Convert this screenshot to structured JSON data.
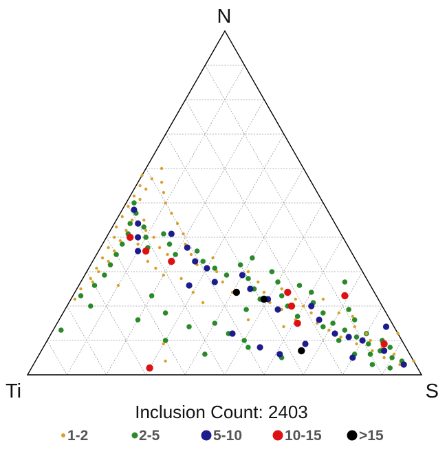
{
  "chart_data": {
    "type": "scatter",
    "subtype": "ternary",
    "vertices": {
      "top": "N",
      "left": "Ti",
      "right": "S"
    },
    "annotation": "Inclusion Count: 2403",
    "grid": true,
    "grid_divisions": 10,
    "legend_position": "bottom",
    "series": [
      {
        "name": "1-2",
        "color": "#d9a02a",
        "points": [
          {
            "N": 0.58,
            "S": 0.0,
            "Ti": 0.42
          },
          {
            "N": 0.55,
            "S": 0.01,
            "Ti": 0.44
          },
          {
            "N": 0.52,
            "S": 0.01,
            "Ti": 0.47
          },
          {
            "N": 0.49,
            "S": 0.01,
            "Ti": 0.5
          },
          {
            "N": 0.46,
            "S": 0.01,
            "Ti": 0.53
          },
          {
            "N": 0.43,
            "S": 0.01,
            "Ti": 0.56
          },
          {
            "N": 0.4,
            "S": 0.02,
            "Ti": 0.58
          },
          {
            "N": 0.37,
            "S": 0.02,
            "Ti": 0.61
          },
          {
            "N": 0.34,
            "S": 0.02,
            "Ti": 0.64
          },
          {
            "N": 0.31,
            "S": 0.02,
            "Ti": 0.67
          },
          {
            "N": 0.28,
            "S": 0.02,
            "Ti": 0.7
          },
          {
            "N": 0.25,
            "S": 0.01,
            "Ti": 0.74
          },
          {
            "N": 0.22,
            "S": 0.01,
            "Ti": 0.77
          },
          {
            "N": 0.57,
            "S": 0.03,
            "Ti": 0.4
          },
          {
            "N": 0.54,
            "S": 0.03,
            "Ti": 0.43
          },
          {
            "N": 0.51,
            "S": 0.03,
            "Ti": 0.46
          },
          {
            "N": 0.48,
            "S": 0.03,
            "Ti": 0.49
          },
          {
            "N": 0.45,
            "S": 0.04,
            "Ti": 0.51
          },
          {
            "N": 0.42,
            "S": 0.04,
            "Ti": 0.54
          },
          {
            "N": 0.39,
            "S": 0.04,
            "Ti": 0.57
          },
          {
            "N": 0.36,
            "S": 0.04,
            "Ti": 0.6
          },
          {
            "N": 0.33,
            "S": 0.04,
            "Ti": 0.63
          },
          {
            "N": 0.3,
            "S": 0.03,
            "Ti": 0.67
          },
          {
            "N": 0.27,
            "S": 0.03,
            "Ti": 0.7
          },
          {
            "N": 0.6,
            "S": 0.04,
            "Ti": 0.36
          },
          {
            "N": 0.56,
            "S": 0.06,
            "Ti": 0.38
          },
          {
            "N": 0.53,
            "S": 0.08,
            "Ti": 0.39
          },
          {
            "N": 0.5,
            "S": 0.1,
            "Ti": 0.4
          },
          {
            "N": 0.47,
            "S": 0.13,
            "Ti": 0.4
          },
          {
            "N": 0.44,
            "S": 0.16,
            "Ti": 0.4
          },
          {
            "N": 0.41,
            "S": 0.19,
            "Ti": 0.4
          },
          {
            "N": 0.38,
            "S": 0.21,
            "Ti": 0.41
          },
          {
            "N": 0.35,
            "S": 0.24,
            "Ti": 0.41
          },
          {
            "N": 0.32,
            "S": 0.27,
            "Ti": 0.41
          },
          {
            "N": 0.42,
            "S": 0.09,
            "Ti": 0.49
          },
          {
            "N": 0.4,
            "S": 0.12,
            "Ti": 0.48
          },
          {
            "N": 0.37,
            "S": 0.15,
            "Ti": 0.48
          },
          {
            "N": 0.35,
            "S": 0.18,
            "Ti": 0.47
          },
          {
            "N": 0.45,
            "S": 0.07,
            "Ti": 0.48
          },
          {
            "N": 0.38,
            "S": 0.09,
            "Ti": 0.53
          },
          {
            "N": 0.36,
            "S": 0.12,
            "Ti": 0.52
          },
          {
            "N": 0.33,
            "S": 0.14,
            "Ti": 0.53
          },
          {
            "N": 0.31,
            "S": 0.17,
            "Ti": 0.52
          },
          {
            "N": 0.29,
            "S": 0.2,
            "Ti": 0.51
          },
          {
            "N": 0.34,
            "S": 0.3,
            "Ti": 0.36
          },
          {
            "N": 0.3,
            "S": 0.33,
            "Ti": 0.37
          },
          {
            "N": 0.27,
            "S": 0.36,
            "Ti": 0.37
          },
          {
            "N": 0.24,
            "S": 0.4,
            "Ti": 0.36
          },
          {
            "N": 0.3,
            "S": 0.41,
            "Ti": 0.29
          },
          {
            "N": 0.27,
            "S": 0.45,
            "Ti": 0.28
          },
          {
            "N": 0.24,
            "S": 0.48,
            "Ti": 0.28
          },
          {
            "N": 0.21,
            "S": 0.51,
            "Ti": 0.28
          },
          {
            "N": 0.19,
            "S": 0.55,
            "Ti": 0.26
          },
          {
            "N": 0.16,
            "S": 0.6,
            "Ti": 0.24
          },
          {
            "N": 0.22,
            "S": 0.57,
            "Ti": 0.21
          },
          {
            "N": 0.18,
            "S": 0.63,
            "Ti": 0.19
          },
          {
            "N": 0.15,
            "S": 0.66,
            "Ti": 0.19
          },
          {
            "N": 0.13,
            "S": 0.7,
            "Ti": 0.17
          },
          {
            "N": 0.11,
            "S": 0.74,
            "Ti": 0.15
          },
          {
            "N": 0.09,
            "S": 0.79,
            "Ti": 0.12
          },
          {
            "N": 0.07,
            "S": 0.84,
            "Ti": 0.09
          },
          {
            "N": 0.05,
            "S": 0.88,
            "Ti": 0.07
          },
          {
            "N": 0.08,
            "S": 0.86,
            "Ti": 0.06
          },
          {
            "N": 0.12,
            "S": 0.8,
            "Ti": 0.08
          },
          {
            "N": 0.14,
            "S": 0.76,
            "Ti": 0.1
          },
          {
            "N": 0.03,
            "S": 0.93,
            "Ti": 0.04
          },
          {
            "N": 0.06,
            "S": 0.9,
            "Ti": 0.04
          },
          {
            "N": 0.1,
            "S": 0.82,
            "Ti": 0.08
          },
          {
            "N": 0.2,
            "S": 0.6,
            "Ti": 0.2
          },
          {
            "N": 0.25,
            "S": 0.52,
            "Ti": 0.23
          },
          {
            "N": 0.18,
            "S": 0.7,
            "Ti": 0.12
          },
          {
            "N": 0.26,
            "S": 0.1,
            "Ti": 0.64
          },
          {
            "N": 0.09,
            "S": 0.3,
            "Ti": 0.61
          },
          {
            "N": 0.04,
            "S": 0.33,
            "Ti": 0.63
          },
          {
            "N": 0.24,
            "S": 0.3,
            "Ti": 0.46
          },
          {
            "N": 0.21,
            "S": 0.34,
            "Ti": 0.45
          },
          {
            "N": 0.28,
            "S": 0.25,
            "Ti": 0.47
          },
          {
            "N": 0.16,
            "S": 0.48,
            "Ti": 0.36
          },
          {
            "N": 0.14,
            "S": 0.58,
            "Ti": 0.28
          },
          {
            "N": 0.22,
            "S": 0.64,
            "Ti": 0.14
          },
          {
            "N": 0.17,
            "S": 0.74,
            "Ti": 0.09
          },
          {
            "N": 0.12,
            "S": 0.88,
            "Ti": 0.0
          },
          {
            "N": 0.04,
            "S": 0.96,
            "Ti": 0.0
          }
        ]
      },
      {
        "name": "2-5",
        "color": "#2a8a2a",
        "points": [
          {
            "N": 0.5,
            "S": 0.02,
            "Ti": 0.48
          },
          {
            "N": 0.47,
            "S": 0.04,
            "Ti": 0.49
          },
          {
            "N": 0.44,
            "S": 0.04,
            "Ti": 0.52
          },
          {
            "N": 0.41,
            "S": 0.05,
            "Ti": 0.54
          },
          {
            "N": 0.38,
            "S": 0.05,
            "Ti": 0.57
          },
          {
            "N": 0.35,
            "S": 0.05,
            "Ti": 0.6
          },
          {
            "N": 0.32,
            "S": 0.05,
            "Ti": 0.63
          },
          {
            "N": 0.29,
            "S": 0.05,
            "Ti": 0.66
          },
          {
            "N": 0.43,
            "S": 0.08,
            "Ti": 0.49
          },
          {
            "N": 0.4,
            "S": 0.1,
            "Ti": 0.5
          },
          {
            "N": 0.37,
            "S": 0.12,
            "Ti": 0.51
          },
          {
            "N": 0.41,
            "S": 0.14,
            "Ti": 0.45
          },
          {
            "N": 0.38,
            "S": 0.17,
            "Ti": 0.45
          },
          {
            "N": 0.35,
            "S": 0.2,
            "Ti": 0.45
          },
          {
            "N": 0.36,
            "S": 0.25,
            "Ti": 0.39
          },
          {
            "N": 0.33,
            "S": 0.28,
            "Ti": 0.39
          },
          {
            "N": 0.31,
            "S": 0.32,
            "Ti": 0.37
          },
          {
            "N": 0.29,
            "S": 0.36,
            "Ti": 0.35
          },
          {
            "N": 0.32,
            "S": 0.38,
            "Ti": 0.3
          },
          {
            "N": 0.28,
            "S": 0.42,
            "Ti": 0.3
          },
          {
            "N": 0.25,
            "S": 0.45,
            "Ti": 0.3
          },
          {
            "N": 0.27,
            "S": 0.5,
            "Ti": 0.23
          },
          {
            "N": 0.23,
            "S": 0.53,
            "Ti": 0.24
          },
          {
            "N": 0.2,
            "S": 0.56,
            "Ti": 0.24
          },
          {
            "N": 0.21,
            "S": 0.62,
            "Ti": 0.17
          },
          {
            "N": 0.18,
            "S": 0.66,
            "Ti": 0.16
          },
          {
            "N": 0.15,
            "S": 0.7,
            "Ti": 0.15
          },
          {
            "N": 0.13,
            "S": 0.74,
            "Ti": 0.13
          },
          {
            "N": 0.11,
            "S": 0.78,
            "Ti": 0.11
          },
          {
            "N": 0.09,
            "S": 0.82,
            "Ti": 0.09
          },
          {
            "N": 0.07,
            "S": 0.86,
            "Ti": 0.07
          },
          {
            "N": 0.05,
            "S": 0.9,
            "Ti": 0.05
          },
          {
            "N": 0.04,
            "S": 0.93,
            "Ti": 0.03
          },
          {
            "N": 0.08,
            "S": 0.88,
            "Ti": 0.04
          },
          {
            "N": 0.1,
            "S": 0.85,
            "Ti": 0.05
          },
          {
            "N": 0.06,
            "S": 0.84,
            "Ti": 0.1
          },
          {
            "N": 0.12,
            "S": 0.8,
            "Ti": 0.08
          },
          {
            "N": 0.16,
            "S": 0.75,
            "Ti": 0.09
          },
          {
            "N": 0.14,
            "S": 0.68,
            "Ti": 0.18
          },
          {
            "N": 0.17,
            "S": 0.6,
            "Ti": 0.23
          },
          {
            "N": 0.1,
            "S": 0.74,
            "Ti": 0.16
          },
          {
            "N": 0.06,
            "S": 0.8,
            "Ti": 0.14
          },
          {
            "N": 0.03,
            "S": 0.86,
            "Ti": 0.11
          },
          {
            "N": 0.02,
            "S": 0.91,
            "Ti": 0.07
          },
          {
            "N": 0.22,
            "S": 0.48,
            "Ti": 0.3
          },
          {
            "N": 0.19,
            "S": 0.46,
            "Ti": 0.35
          },
          {
            "N": 0.15,
            "S": 0.4,
            "Ti": 0.45
          },
          {
            "N": 0.12,
            "S": 0.45,
            "Ti": 0.43
          },
          {
            "N": 0.1,
            "S": 0.5,
            "Ti": 0.4
          },
          {
            "N": 0.08,
            "S": 0.52,
            "Ti": 0.4
          },
          {
            "N": 0.14,
            "S": 0.34,
            "Ti": 0.52
          },
          {
            "N": 0.05,
            "S": 0.62,
            "Ti": 0.33
          },
          {
            "N": 0.24,
            "S": 0.6,
            "Ti": 0.16
          },
          {
            "N": 0.26,
            "S": 0.56,
            "Ti": 0.18
          },
          {
            "N": 0.3,
            "S": 0.47,
            "Ti": 0.23
          },
          {
            "N": 0.34,
            "S": 0.4,
            "Ti": 0.26
          },
          {
            "N": 0.27,
            "S": 0.67,
            "Ti": 0.06
          },
          {
            "N": 0.19,
            "S": 0.72,
            "Ti": 0.09
          },
          {
            "N": 0.26,
            "S": 0.04,
            "Ti": 0.7
          },
          {
            "N": 0.23,
            "S": 0.02,
            "Ti": 0.75
          },
          {
            "N": 0.2,
            "S": 0.06,
            "Ti": 0.74
          },
          {
            "N": 0.16,
            "S": 0.2,
            "Ti": 0.64
          },
          {
            "N": 0.18,
            "S": 0.26,
            "Ti": 0.56
          },
          {
            "N": 0.23,
            "S": 0.2,
            "Ti": 0.57
          },
          {
            "N": 0.1,
            "S": 0.3,
            "Ti": 0.6
          },
          {
            "N": 0.06,
            "S": 0.42,
            "Ti": 0.52
          },
          {
            "N": 0.13,
            "S": 0.02,
            "Ti": 0.85
          }
        ]
      },
      {
        "name": "5-10",
        "color": "#1c1c8c",
        "points": [
          {
            "N": 0.44,
            "S": 0.06,
            "Ti": 0.5
          },
          {
            "N": 0.4,
            "S": 0.08,
            "Ti": 0.52
          },
          {
            "N": 0.36,
            "S": 0.1,
            "Ti": 0.54
          },
          {
            "N": 0.41,
            "S": 0.16,
            "Ti": 0.43
          },
          {
            "N": 0.37,
            "S": 0.22,
            "Ti": 0.41
          },
          {
            "N": 0.33,
            "S": 0.26,
            "Ti": 0.41
          },
          {
            "N": 0.31,
            "S": 0.3,
            "Ti": 0.39
          },
          {
            "N": 0.27,
            "S": 0.34,
            "Ti": 0.39
          },
          {
            "N": 0.29,
            "S": 0.4,
            "Ti": 0.31
          },
          {
            "N": 0.25,
            "S": 0.44,
            "Ti": 0.31
          },
          {
            "N": 0.22,
            "S": 0.5,
            "Ti": 0.28
          },
          {
            "N": 0.19,
            "S": 0.54,
            "Ti": 0.27
          },
          {
            "N": 0.16,
            "S": 0.66,
            "Ti": 0.18
          },
          {
            "N": 0.12,
            "S": 0.72,
            "Ti": 0.16
          },
          {
            "N": 0.1,
            "S": 0.8,
            "Ti": 0.1
          },
          {
            "N": 0.07,
            "S": 0.87,
            "Ti": 0.06
          },
          {
            "N": 0.03,
            "S": 0.94,
            "Ti": 0.03
          },
          {
            "N": 0.11,
            "S": 0.76,
            "Ti": 0.13
          },
          {
            "N": 0.12,
            "S": 0.46,
            "Ti": 0.42
          },
          {
            "N": 0.08,
            "S": 0.55,
            "Ti": 0.37
          },
          {
            "N": 0.06,
            "S": 0.61,
            "Ti": 0.33
          },
          {
            "N": 0.09,
            "S": 0.66,
            "Ti": 0.25
          },
          {
            "N": 0.26,
            "S": 0.28,
            "Ti": 0.46
          },
          {
            "N": 0.2,
            "S": 0.62,
            "Ti": 0.18
          },
          {
            "N": 0.05,
            "S": 0.8,
            "Ti": 0.15
          },
          {
            "N": 0.14,
            "S": 0.84,
            "Ti": 0.02
          },
          {
            "N": 0.48,
            "S": 0.03,
            "Ti": 0.49
          }
        ]
      },
      {
        "name": "10-15",
        "color": "#dd1111",
        "points": [
          {
            "N": 0.36,
            "S": 0.12,
            "Ti": 0.52
          },
          {
            "N": 0.4,
            "S": 0.06,
            "Ti": 0.54
          },
          {
            "N": 0.33,
            "S": 0.2,
            "Ti": 0.47
          },
          {
            "N": 0.24,
            "S": 0.54,
            "Ti": 0.22
          },
          {
            "N": 0.15,
            "S": 0.61,
            "Ti": 0.24
          },
          {
            "N": 0.23,
            "S": 0.69,
            "Ti": 0.08
          },
          {
            "N": 0.2,
            "S": 0.57,
            "Ti": 0.23
          },
          {
            "N": 0.09,
            "S": 0.86,
            "Ti": 0.05
          },
          {
            "N": 0.02,
            "S": 0.3,
            "Ti": 0.68
          }
        ]
      },
      {
        "name": ">15",
        "color": "#000000",
        "points": [
          {
            "N": 0.22,
            "S": 0.49,
            "Ti": 0.29
          },
          {
            "N": 0.24,
            "S": 0.41,
            "Ti": 0.35
          },
          {
            "N": 0.07,
            "S": 0.66,
            "Ti": 0.27
          }
        ]
      }
    ]
  }
}
